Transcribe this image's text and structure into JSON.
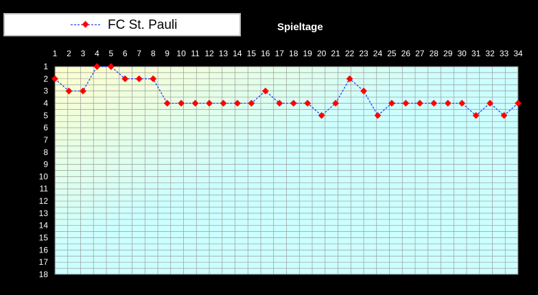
{
  "chart_data": {
    "type": "line",
    "title": "Spieltage",
    "x": [
      1,
      2,
      3,
      4,
      5,
      6,
      7,
      8,
      9,
      10,
      11,
      12,
      13,
      14,
      15,
      16,
      17,
      18,
      19,
      20,
      21,
      22,
      23,
      24,
      25,
      26,
      27,
      28,
      29,
      30,
      31,
      32,
      33,
      34
    ],
    "series": [
      {
        "name": "FC St. Pauli",
        "values": [
          2,
          3,
          3,
          1,
          1,
          2,
          2,
          2,
          4,
          4,
          4,
          4,
          4,
          4,
          4,
          3,
          4,
          4,
          4,
          5,
          4,
          2,
          3,
          5,
          4,
          4,
          4,
          4,
          4,
          4,
          5,
          4,
          5,
          4
        ],
        "line_color": "#1f3fff",
        "marker_color": "#ff0000"
      }
    ],
    "xlim": [
      1,
      34
    ],
    "ylim": [
      1,
      18
    ],
    "y_inverted": true,
    "x_axis_position": "top",
    "grid": true,
    "legend_position": "top-left",
    "colors": {
      "background": "#000000",
      "gradient_left": "#ffffcc",
      "gradient_mid": "#ccffff",
      "gradient_right": "#ccffff",
      "grid": "#999999",
      "text": "#ffffff"
    }
  }
}
